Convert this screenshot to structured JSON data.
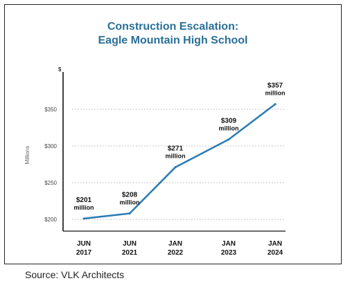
{
  "chart_data": {
    "type": "line",
    "title": "Construction Escalation:",
    "subtitle": "Eagle Mountain High School",
    "ylabel": "Millions",
    "y_unit_label": "$",
    "ylim": [
      195,
      375
    ],
    "y_ticks": [
      {
        "value": 200,
        "label": "$200"
      },
      {
        "value": 250,
        "label": "$250"
      },
      {
        "value": 300,
        "label": "$300"
      },
      {
        "value": 350,
        "label": "$350"
      }
    ],
    "grid": "horizontal-dotted",
    "color": "#2a7db3",
    "points": [
      {
        "x_month": "JUN",
        "x_year": "2017",
        "value": 201,
        "label_value": "$201",
        "label_unit": "million"
      },
      {
        "x_month": "JUN",
        "x_year": "2021",
        "value": 208,
        "label_value": "$208",
        "label_unit": "million"
      },
      {
        "x_month": "JAN",
        "x_year": "2022",
        "value": 271,
        "label_value": "$271",
        "label_unit": "million"
      },
      {
        "x_month": "JAN",
        "x_year": "2023",
        "value": 309,
        "label_value": "$309",
        "label_unit": "million"
      },
      {
        "x_month": "JAN",
        "x_year": "2024",
        "value": 357,
        "label_value": "$357",
        "label_unit": "million"
      }
    ]
  },
  "source": "Source: VLK Architects"
}
